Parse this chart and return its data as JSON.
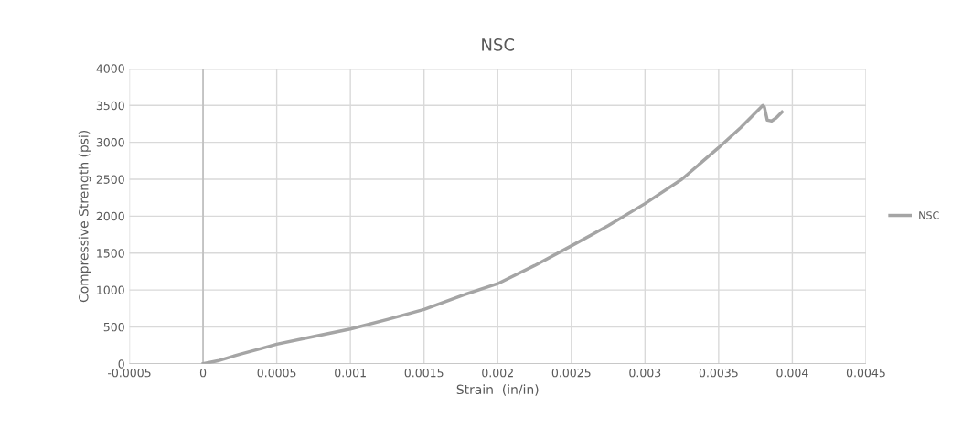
{
  "chart_data": {
    "type": "line",
    "title": "NSC",
    "xlabel": "Strain  (in/in)",
    "ylabel": "Compressive Strength (psi)",
    "x": [
      0,
      0.0001,
      0.00025,
      0.0004,
      0.0005,
      0.00075,
      0.001,
      0.00125,
      0.0015,
      0.00175,
      0.002,
      0.00225,
      0.0025,
      0.00275,
      0.003,
      0.00325,
      0.0035,
      0.00365,
      0.0038,
      0.00381,
      0.00383,
      0.00386,
      0.00389,
      0.00393
    ],
    "series": [
      {
        "name": "NSC",
        "color": "#a5a5a5",
        "values": [
          0,
          40,
          130,
          210,
          266,
          370,
          471,
          600,
          737,
          920,
          1085,
          1330,
          1597,
          1870,
          2170,
          2500,
          2928,
          3200,
          3500,
          3480,
          3300,
          3290,
          3330,
          3410
        ]
      }
    ],
    "xlim": [
      -0.0005,
      0.0045
    ],
    "xticks": [
      -0.0005,
      0,
      0.0005,
      0.001,
      0.0015,
      0.002,
      0.0025,
      0.003,
      0.0035,
      0.004,
      0.0045
    ],
    "ylim": [
      0,
      4000
    ],
    "yticks": [
      0,
      500,
      1000,
      1500,
      2000,
      2500,
      3000,
      3500,
      4000
    ],
    "grid": true,
    "legend": "right",
    "marker": "none",
    "line_style": "solid"
  }
}
